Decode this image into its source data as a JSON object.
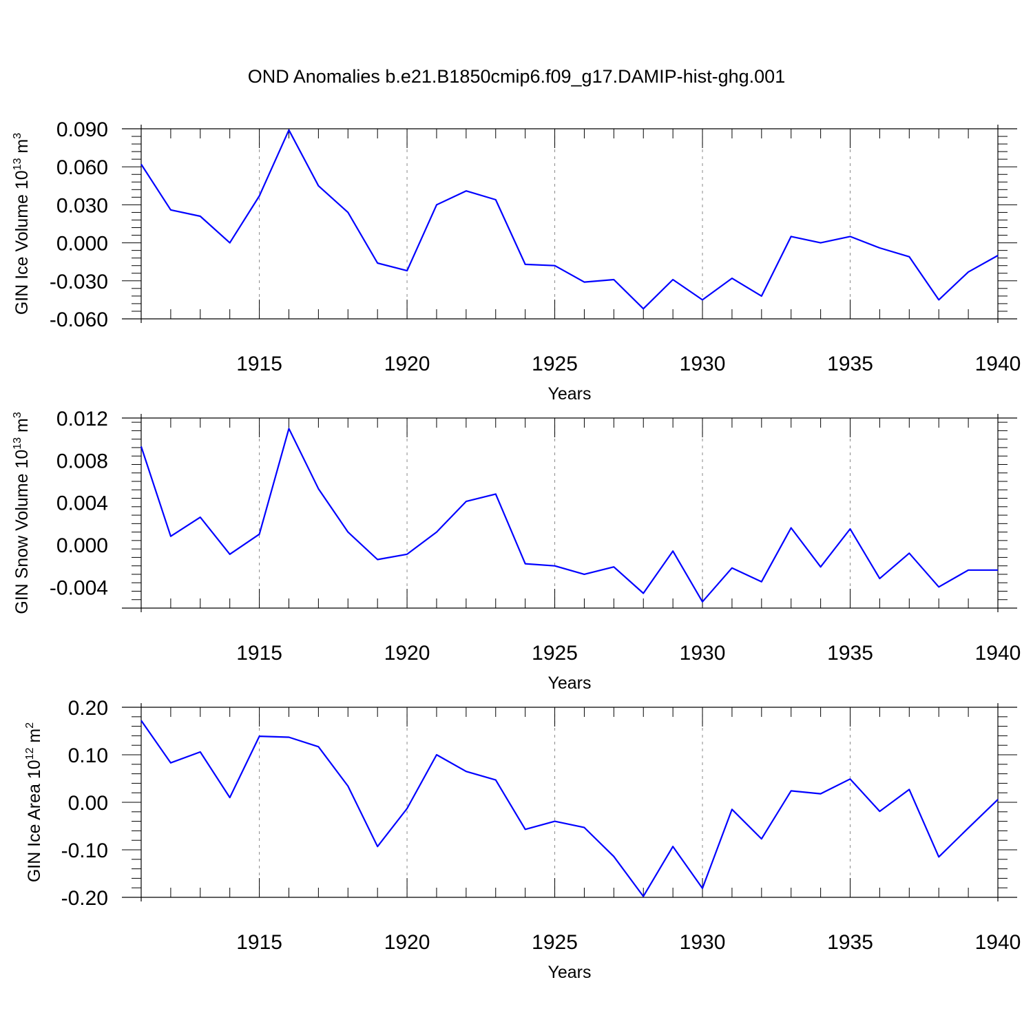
{
  "title": "OND Anomalies b.e21.B1850cmip6.f09_g17.DAMIP-hist-ghg.001",
  "colors": {
    "series": "#0000ff",
    "axis": "#000000",
    "grid": "#888888"
  },
  "chart_data": [
    {
      "type": "line",
      "ylabel": "GIN Ice Volume 10",
      "ylabel_exp": "13",
      "ylabel_unit": "m",
      "ylabel_unit_exp": "3",
      "xlabel": "Years",
      "xlim": [
        1911,
        1940
      ],
      "ylim": [
        -0.06,
        0.09
      ],
      "yticks": [
        -0.06,
        -0.03,
        0.0,
        0.03,
        0.06,
        0.09
      ],
      "ytick_labels": [
        "-0.060",
        "-0.030",
        "0.000",
        "0.030",
        "0.060",
        "0.090"
      ],
      "xticks": [
        1915,
        1920,
        1925,
        1930,
        1935,
        1940
      ],
      "xtick_labels": [
        "1915",
        "1920",
        "1925",
        "1930",
        "1935",
        "1940"
      ],
      "grid": "vertical dashed at major x ticks",
      "x": [
        1911,
        1912,
        1913,
        1914,
        1915,
        1916,
        1917,
        1918,
        1919,
        1920,
        1921,
        1922,
        1923,
        1924,
        1925,
        1926,
        1927,
        1928,
        1929,
        1930,
        1931,
        1932,
        1933,
        1934,
        1935,
        1936,
        1937,
        1938,
        1939,
        1940
      ],
      "values": [
        0.062,
        0.026,
        0.021,
        0.0,
        0.037,
        0.089,
        0.045,
        0.024,
        -0.016,
        -0.022,
        0.03,
        0.041,
        0.034,
        -0.017,
        -0.018,
        -0.031,
        -0.029,
        -0.052,
        -0.029,
        -0.045,
        -0.028,
        -0.042,
        0.005,
        0.0,
        0.005,
        -0.004,
        -0.011,
        -0.045,
        -0.023,
        -0.01
      ]
    },
    {
      "type": "line",
      "ylabel": "GIN Snow Volume 10",
      "ylabel_exp": "13",
      "ylabel_unit": "m",
      "ylabel_unit_exp": "3",
      "xlabel": "Years",
      "xlim": [
        1911,
        1940
      ],
      "ylim": [
        -0.006,
        0.012
      ],
      "yticks": [
        -0.004,
        0.0,
        0.004,
        0.008,
        0.012
      ],
      "ytick_labels": [
        "-0.004",
        "0.000",
        "0.004",
        "0.008",
        "0.012"
      ],
      "xticks": [
        1915,
        1920,
        1925,
        1930,
        1935,
        1940
      ],
      "xtick_labels": [
        "1915",
        "1920",
        "1925",
        "1930",
        "1935",
        "1940"
      ],
      "grid": "vertical dashed at major x ticks",
      "x": [
        1911,
        1912,
        1913,
        1914,
        1915,
        1916,
        1917,
        1918,
        1919,
        1920,
        1921,
        1922,
        1923,
        1924,
        1925,
        1926,
        1927,
        1928,
        1929,
        1930,
        1931,
        1932,
        1933,
        1934,
        1935,
        1936,
        1937,
        1938,
        1939,
        1940
      ],
      "values": [
        0.0093,
        0.0008,
        0.0026,
        -0.0009,
        0.001,
        0.011,
        0.0053,
        0.0012,
        -0.0014,
        -0.0009,
        0.0012,
        0.0041,
        0.0048,
        -0.0018,
        -0.002,
        -0.0028,
        -0.0021,
        -0.0046,
        -0.0006,
        -0.0054,
        -0.0022,
        -0.0035,
        0.0016,
        -0.0021,
        0.0015,
        -0.0032,
        -0.0008,
        -0.004,
        -0.0024,
        -0.0024
      ]
    },
    {
      "type": "line",
      "ylabel": "GIN Ice Area 10",
      "ylabel_exp": "12",
      "ylabel_unit": "m",
      "ylabel_unit_exp": "2",
      "xlabel": "Years",
      "xlim": [
        1911,
        1940
      ],
      "ylim": [
        -0.2,
        0.2
      ],
      "yticks": [
        -0.2,
        -0.1,
        0.0,
        0.1,
        0.2
      ],
      "ytick_labels": [
        "-0.20",
        "-0.10",
        "0.00",
        "0.10",
        "0.20"
      ],
      "xticks": [
        1915,
        1920,
        1925,
        1930,
        1935,
        1940
      ],
      "xtick_labels": [
        "1915",
        "1920",
        "1925",
        "1930",
        "1935",
        "1940"
      ],
      "grid": "vertical dashed at major x ticks",
      "x": [
        1911,
        1912,
        1913,
        1914,
        1915,
        1916,
        1917,
        1918,
        1919,
        1920,
        1921,
        1922,
        1923,
        1924,
        1925,
        1926,
        1927,
        1928,
        1929,
        1930,
        1931,
        1932,
        1933,
        1934,
        1935,
        1936,
        1937,
        1938,
        1939,
        1940
      ],
      "values": [
        0.172,
        0.083,
        0.106,
        0.01,
        0.139,
        0.137,
        0.117,
        0.034,
        -0.093,
        -0.013,
        0.1,
        0.065,
        0.047,
        -0.057,
        -0.04,
        -0.053,
        -0.114,
        -0.198,
        -0.093,
        -0.181,
        -0.015,
        -0.077,
        0.024,
        0.018,
        0.049,
        -0.019,
        0.027,
        -0.115,
        -0.054,
        0.006
      ]
    }
  ]
}
